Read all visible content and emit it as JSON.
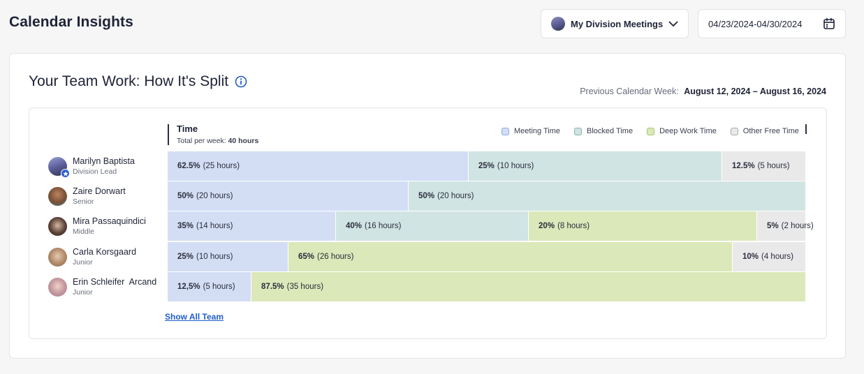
{
  "header": {
    "title": "Calendar Insights",
    "division_select": "My Division Meetings",
    "date_range": "04/23/2024-04/30/2024"
  },
  "card": {
    "title": "Your Team Work: How It's Split",
    "prev_week_label": "Previous Calendar Week:",
    "prev_week_range": "August 12, 2024 – August 16, 2024",
    "time_header": "Time",
    "total_label": "Total per week:",
    "total_value": "40 hours",
    "show_all": "Show All Team"
  },
  "legend": [
    {
      "label": "Meeting Time",
      "fill": "#d3def5",
      "border": "#8ea8e0"
    },
    {
      "label": "Blocked Time",
      "fill": "#d0e4e3",
      "border": "#86b3b0"
    },
    {
      "label": "Deep Work Time",
      "fill": "#dbe8b9",
      "border": "#a9c471"
    },
    {
      "label": "Other Free Time",
      "fill": "#e9e9ea",
      "border": "#a8a9ad"
    }
  ],
  "team": [
    {
      "name": "Marilyn Baptista",
      "role": "Division Lead",
      "lead": true,
      "segments": [
        {
          "kind": "meeting",
          "pct": "62.5%",
          "hours": "(25 hours)",
          "frac": 0.4714
        },
        {
          "kind": "blocked",
          "pct": "25%",
          "hours": "(10 hours)",
          "frac": 0.3973
        },
        {
          "kind": "free",
          "pct": "12.5%",
          "hours": "(5 hours)",
          "frac": 0.1313
        }
      ]
    },
    {
      "name": "Zaire Dorwart",
      "role": "Senior",
      "lead": false,
      "segments": [
        {
          "kind": "meeting",
          "pct": "50%",
          "hours": "(20 hours)",
          "frac": 0.3775
        },
        {
          "kind": "blocked",
          "pct": "50%",
          "hours": "(20 hours)",
          "frac": 0.6225
        }
      ]
    },
    {
      "name": "Mira Passaquindici",
      "role": "Middle",
      "lead": false,
      "segments": [
        {
          "kind": "meeting",
          "pct": "35%",
          "hours": "(14 hours)",
          "frac": 0.2637
        },
        {
          "kind": "blocked",
          "pct": "40%",
          "hours": "(16 hours)",
          "frac": 0.302
        },
        {
          "kind": "deep",
          "pct": "20%",
          "hours": "(8 hours)",
          "frac": 0.3578
        },
        {
          "kind": "free",
          "pct": "5%",
          "hours": "(2 hours)",
          "frac": 0.0765
        }
      ]
    },
    {
      "name": "Carla Korsgaard",
      "role": "Junior",
      "lead": false,
      "segments": [
        {
          "kind": "meeting",
          "pct": "25%",
          "hours": "(10 hours)",
          "frac": 0.1893
        },
        {
          "kind": "deep",
          "pct": "65%",
          "hours": "(26 hours)",
          "frac": 0.6958
        },
        {
          "kind": "free",
          "pct": "10%",
          "hours": "(4 hours)",
          "frac": 0.1149
        }
      ]
    },
    {
      "name": "Erin Schleifer  Arcand",
      "role": "Junior",
      "lead": false,
      "segments": [
        {
          "kind": "meeting",
          "pct": "12,5%",
          "hours": "(5 hours)",
          "frac": 0.1313
        },
        {
          "kind": "deep",
          "pct": "87.5%",
          "hours": "(35 hours)",
          "frac": 0.8687
        }
      ]
    }
  ]
}
